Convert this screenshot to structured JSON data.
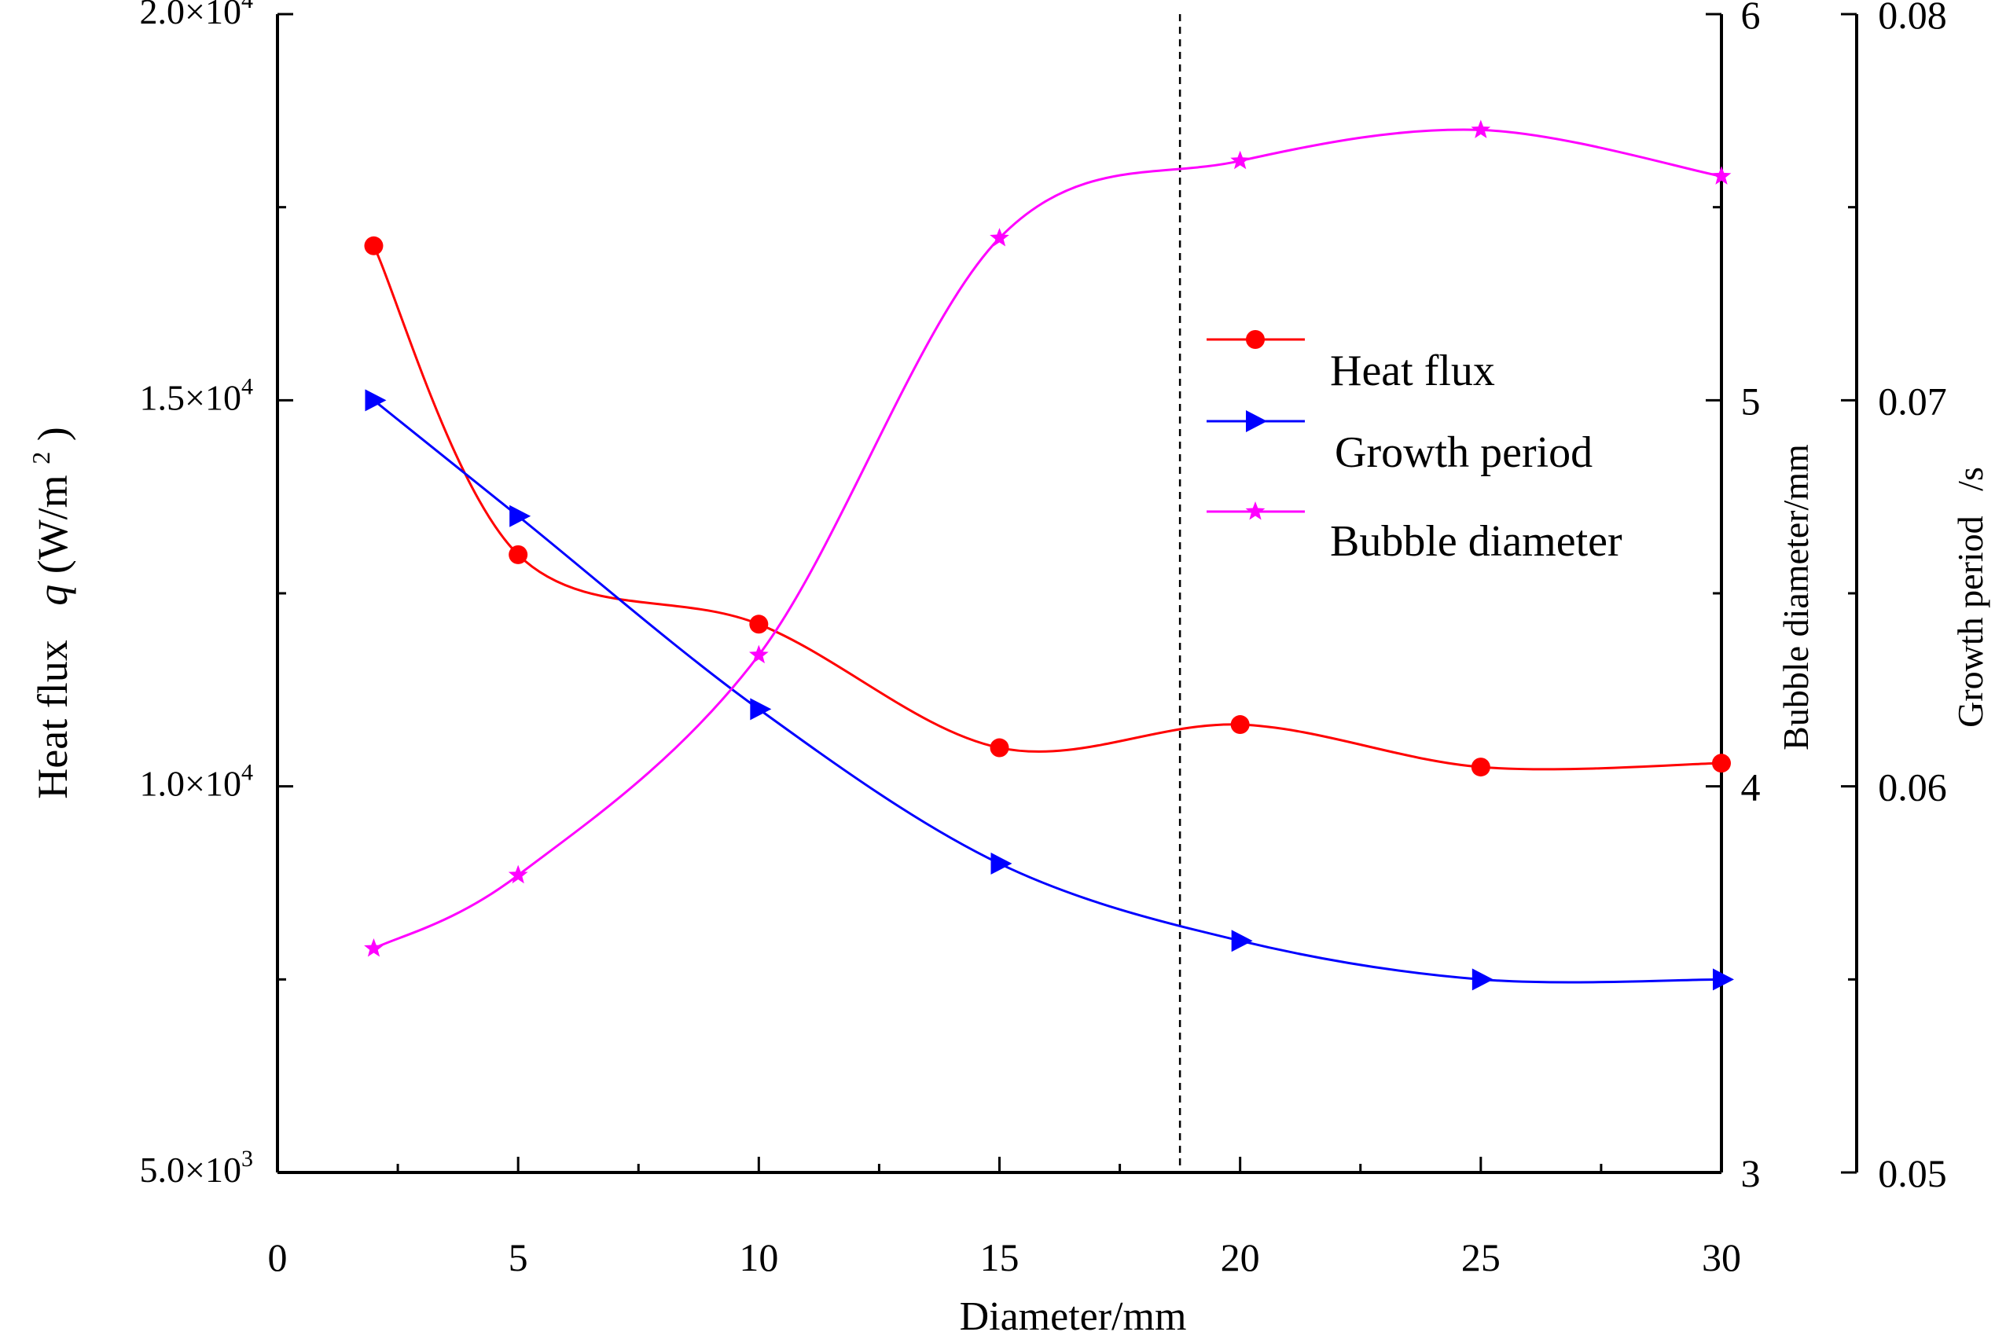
{
  "chart_data": {
    "type": "line",
    "title": "",
    "xlabel": "Diameter/mm",
    "xlim": [
      0,
      30
    ],
    "x_ticks": [
      "0",
      "5",
      "10",
      "15",
      "20",
      "25",
      "30"
    ],
    "reference_line_x": 18.75,
    "axes": {
      "left": {
        "label_parts": [
          "Heat flux",
          "q",
          "(W/m",
          "2",
          ")"
        ],
        "ylim": [
          5000,
          20000
        ],
        "ticks": [
          {
            "value": 5000,
            "mantissa": "5.0×10",
            "exp": "3"
          },
          {
            "value": 10000,
            "mantissa": "1.0×10",
            "exp": "4"
          },
          {
            "value": 15000,
            "mantissa": "1.5×10",
            "exp": "4"
          },
          {
            "value": 20000,
            "mantissa": "2.0×10",
            "exp": "4"
          }
        ]
      },
      "right1": {
        "label": "Bubble diameter/mm",
        "ylim": [
          3,
          6
        ],
        "ticks": [
          "3",
          "4",
          "5",
          "6"
        ]
      },
      "right2": {
        "label_parts": [
          "Growth period",
          "/s"
        ],
        "ylim": [
          0.05,
          0.08
        ],
        "ticks": [
          "0.05",
          "0.06",
          "0.07",
          "0.08"
        ]
      }
    },
    "series": [
      {
        "name": "Heat flux",
        "axis": "left",
        "color": "#ff0000",
        "marker": "circle",
        "x": [
          2,
          5,
          10,
          15,
          20,
          25,
          30
        ],
        "values": [
          17000,
          13000,
          12100,
          10500,
          10800,
          10250,
          10300
        ]
      },
      {
        "name": "Growth period",
        "axis": "right2",
        "color": "#0000ff",
        "marker": "triangle-right",
        "x": [
          2,
          5,
          10,
          15,
          20,
          25,
          30
        ],
        "values": [
          0.07,
          0.067,
          0.062,
          0.058,
          0.056,
          0.055,
          0.055
        ]
      },
      {
        "name": "Bubble diameter",
        "axis": "right1",
        "color": "#ff00ff",
        "marker": "star",
        "x": [
          2,
          5,
          10,
          15,
          20,
          25,
          30
        ],
        "values": [
          3.58,
          3.77,
          4.34,
          5.42,
          5.62,
          5.7,
          5.58
        ]
      }
    ],
    "legend": {
      "placement": "right-center",
      "entries": [
        "Heat flux",
        "Growth period",
        "Bubble diameter"
      ]
    }
  }
}
